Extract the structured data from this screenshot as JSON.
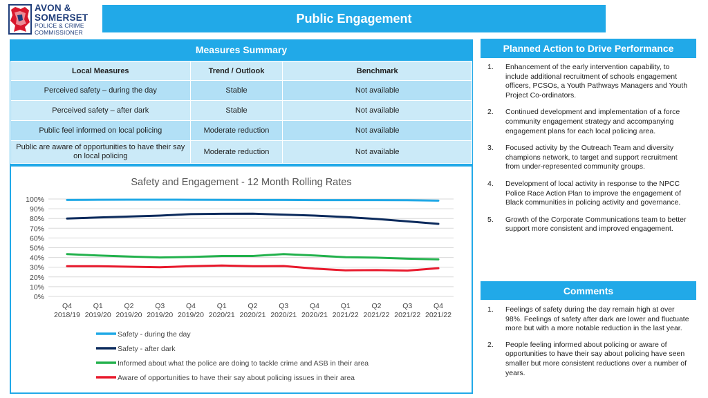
{
  "logo": {
    "line1": "AVON &",
    "line2": "SOMERSET",
    "line3": "POLICE & CRIME",
    "line4": "COMMISSIONER",
    "icon": "crest-icon"
  },
  "page_title": "Public Engagement",
  "measures_summary": {
    "title": "Measures Summary",
    "columns": [
      "Local Measures",
      "Trend / Outlook",
      "Benchmark"
    ],
    "rows": [
      {
        "measure": "Perceived safety – during the day",
        "trend": "Stable",
        "benchmark": "Not available"
      },
      {
        "measure": "Perceived safety – after dark",
        "trend": "Stable",
        "benchmark": "Not available"
      },
      {
        "measure": "Public feel informed on local policing",
        "trend": "Moderate reduction",
        "benchmark": "Not available"
      },
      {
        "measure": "Public are aware of opportunities to have their say on local policing",
        "trend": "Moderate reduction",
        "benchmark": "Not available"
      }
    ]
  },
  "chart_data": {
    "type": "line",
    "title": "Safety and Engagement - 12 Month Rolling Rates",
    "categories": [
      [
        "Q4",
        "2018/19"
      ],
      [
        "Q1",
        "2019/20"
      ],
      [
        "Q2",
        "2019/20"
      ],
      [
        "Q3",
        "2019/20"
      ],
      [
        "Q4",
        "2019/20"
      ],
      [
        "Q1",
        "2020/21"
      ],
      [
        "Q2",
        "2020/21"
      ],
      [
        "Q3",
        "2020/21"
      ],
      [
        "Q4",
        "2020/21"
      ],
      [
        "Q1",
        "2021/22"
      ],
      [
        "Q2",
        "2021/22"
      ],
      [
        "Q3",
        "2021/22"
      ],
      [
        "Q4",
        "2021/22"
      ]
    ],
    "y_ticks": [
      "0%",
      "10%",
      "20%",
      "30%",
      "40%",
      "50%",
      "60%",
      "70%",
      "80%",
      "90%",
      "100%"
    ],
    "ylim": [
      0,
      100
    ],
    "grid": true,
    "legend_position": "bottom",
    "series": [
      {
        "name": "Safety - during the day",
        "color": "#1fa8e6",
        "values": [
          99,
          99.2,
          99.3,
          99.3,
          99.2,
          99.1,
          99.0,
          99.0,
          98.9,
          98.9,
          98.9,
          98.8,
          98.3
        ]
      },
      {
        "name": "Safety - after dark",
        "color": "#0b2a5c",
        "values": [
          80,
          81,
          82,
          83,
          84.5,
          84.8,
          84.9,
          84,
          83,
          81.5,
          79.5,
          77,
          74.5
        ]
      },
      {
        "name": "Informed about what the police are doing to tackle crime and ASB in their area",
        "color": "#22b14c",
        "values": [
          43.5,
          42,
          41,
          40,
          40.5,
          41.5,
          41.5,
          43.5,
          42,
          40.3,
          39.8,
          38.7,
          38
        ]
      },
      {
        "name": "Aware of opportunities to have their say about policing issues in their area",
        "color": "#e8192c",
        "values": [
          31,
          31,
          30.5,
          30,
          31,
          31.8,
          31,
          31.2,
          28.5,
          26.8,
          27,
          26.5,
          29
        ]
      }
    ]
  },
  "planned_action": {
    "title": "Planned Action to Drive Performance",
    "items": [
      {
        "num": "1.",
        "text": "Enhancement of the early intervention capability, to include additional recruitment of schools engagement officers, PCSOs, a Youth Pathways Managers and Youth Project Co-ordinators."
      },
      {
        "num": "2.",
        "text": "Continued development and implementation of a force community engagement strategy and accompanying engagement plans for each local policing area."
      },
      {
        "num": "3.",
        "text": "Focused activity by the Outreach Team and diversity champions network, to target and support recruitment from under-represented community groups."
      },
      {
        "num": "4.",
        "text": "Development of local activity in response to the NPCC Police Race Action Plan to improve the engagement of Black communities in policing activity and governance."
      },
      {
        "num": "5.",
        "text": "Growth of the Corporate Communications team to better support more consistent and improved engagement."
      }
    ]
  },
  "comments": {
    "title": "Comments",
    "items": [
      {
        "num": "1.",
        "text": "Feelings of safety during the day remain high at over 98%. Feelings of safety after dark are lower and fluctuate more but with a more notable reduction in the last year."
      },
      {
        "num": "2.",
        "text": "People feeling informed about policing or aware of opportunities to have their say about policing have seen smaller but more consistent reductions over a number of years."
      }
    ]
  }
}
